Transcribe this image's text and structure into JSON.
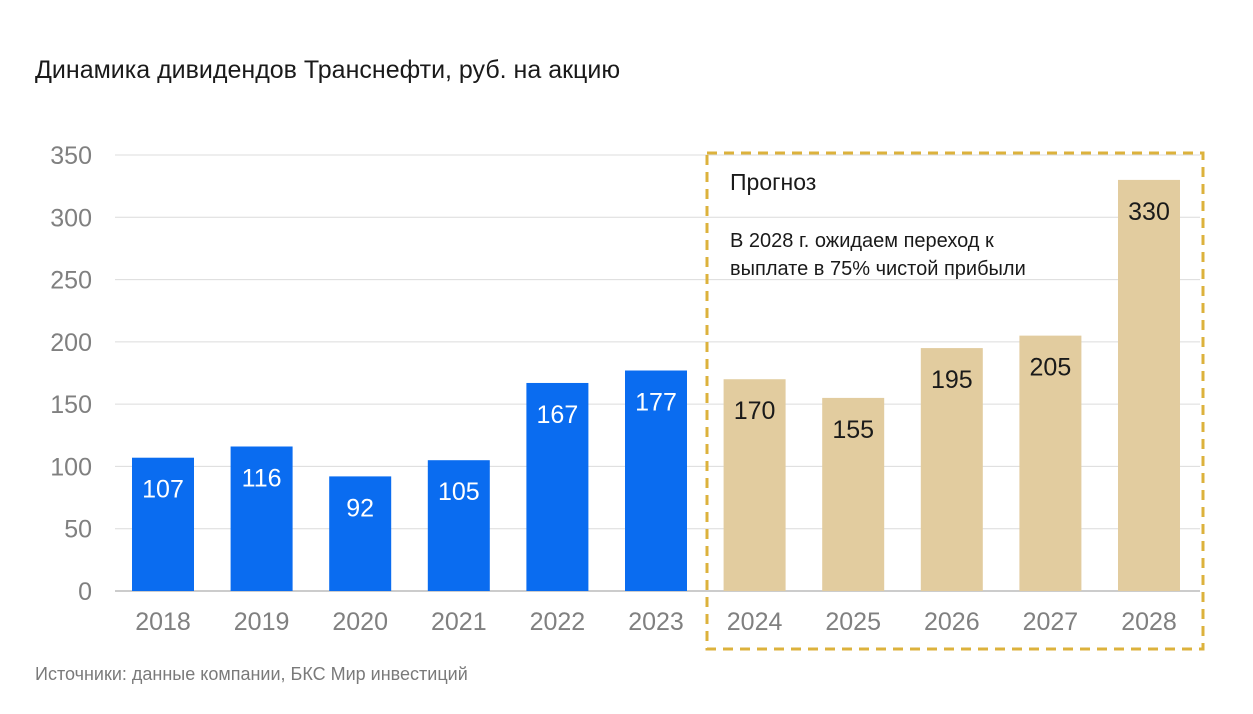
{
  "title": "Динамика дивидендов Транснефти, руб. на акцию",
  "source": "Источники: данные компании, БКС Мир инвестиций",
  "colors": {
    "actual": "#0a6cf0",
    "forecast": "#e2cc9f",
    "forecast_border": "#dcb23c",
    "grid": "#dcdcdc",
    "actual_label": "#ffffff",
    "forecast_label": "#1a1a1a"
  },
  "chart_data": {
    "type": "bar",
    "title": "Динамика дивидендов Транснефти, руб. на акцию",
    "categories": [
      "2018",
      "2019",
      "2020",
      "2021",
      "2022",
      "2023",
      "2024",
      "2025",
      "2026",
      "2027",
      "2028"
    ],
    "values": [
      107,
      116,
      92,
      105,
      167,
      177,
      170,
      155,
      195,
      205,
      330
    ],
    "forecast_from_index": 6,
    "ylim": [
      0,
      350
    ],
    "yticks": [
      0,
      50,
      100,
      150,
      200,
      250,
      300,
      350
    ],
    "grid": true,
    "forecast_box": {
      "title": "Прогноз",
      "text_lines": [
        "В 2028 г. ожидаем переход к",
        "выплате в 75% чистой прибыли"
      ]
    }
  }
}
